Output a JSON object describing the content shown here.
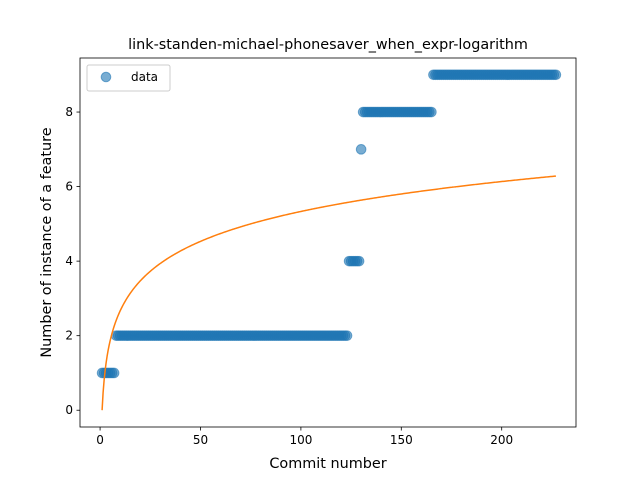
{
  "chart_data": {
    "type": "scatter",
    "title": "link-standen-michael-phonesaver_when_expr-logarithm",
    "xlabel": "Commit number",
    "ylabel": "Number of instance of a feature",
    "xlim": [
      -10,
      237
    ],
    "ylim": [
      -0.45,
      9.45
    ],
    "xticks": [
      0,
      50,
      100,
      150,
      200
    ],
    "yticks": [
      0,
      2,
      4,
      6,
      8
    ],
    "grid": false,
    "legend": {
      "placement": "upper-left",
      "entries": [
        "data"
      ]
    },
    "colors": {
      "data": "#1f77b4",
      "fit": "#ff7f0e"
    },
    "series": [
      {
        "name": "data",
        "kind": "scatter",
        "segments": [
          {
            "x_start": 1,
            "x_end": 7,
            "y": 1
          },
          {
            "x_start": 8,
            "x_end": 123,
            "y": 2
          },
          {
            "x_start": 124,
            "x_end": 129,
            "y": 4
          },
          {
            "x_start": 130,
            "x_end": 130,
            "y": 7
          },
          {
            "x_start": 131,
            "x_end": 165,
            "y": 8
          },
          {
            "x_start": 166,
            "x_end": 227,
            "y": 9
          }
        ]
      },
      {
        "kind": "line",
        "function": "a*ln(x)+b",
        "a": 1.158,
        "b": 0,
        "x_start": 1,
        "x_end": 227
      }
    ]
  }
}
